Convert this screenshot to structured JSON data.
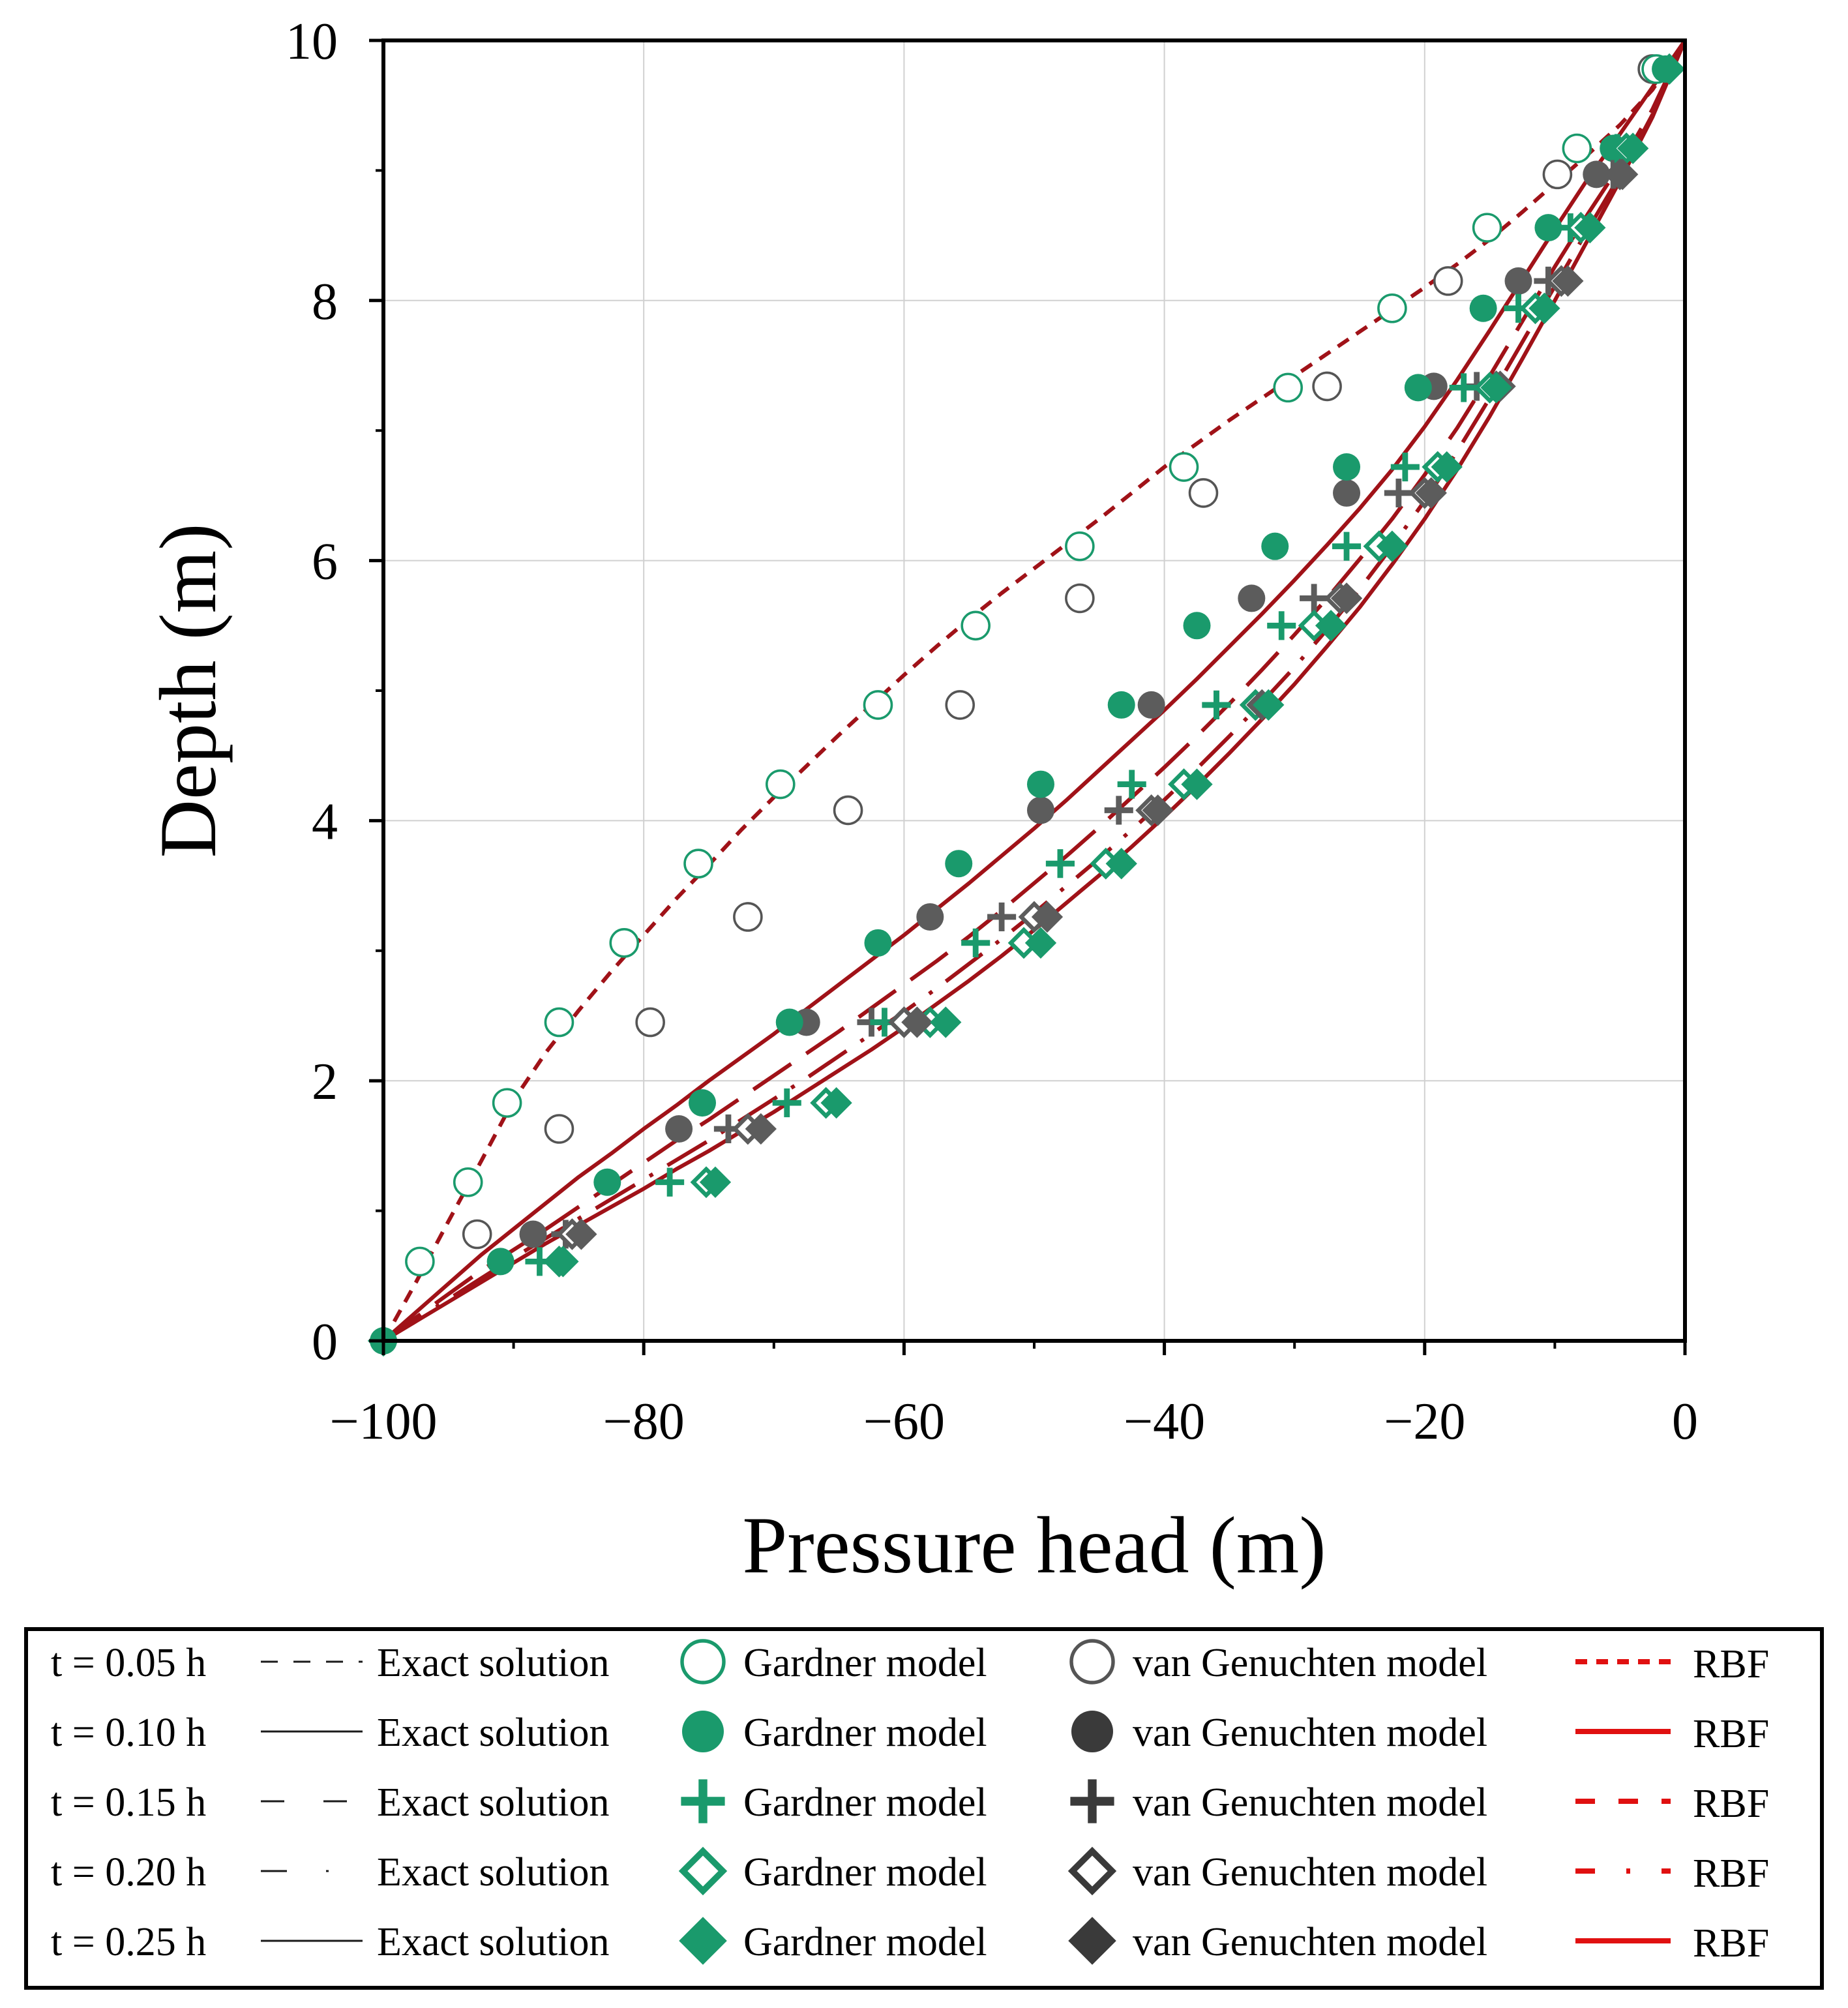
{
  "chart_data": {
    "type": "line",
    "title": "",
    "xlabel": "Pressure head (m)",
    "ylabel": "Depth (m)",
    "xlim": [
      -100,
      0
    ],
    "ylim": [
      0,
      10
    ],
    "x_ticks": [
      -100,
      -80,
      -60,
      -40,
      -20,
      0
    ],
    "x_tick_labels": [
      "−100",
      "−80",
      "−60",
      "−40",
      "−20",
      "0"
    ],
    "y_ticks": [
      0,
      2,
      4,
      6,
      8,
      10
    ],
    "y_tick_labels": [
      "0",
      "2",
      "4",
      "6",
      "8",
      "10"
    ],
    "grid": true,
    "legend_position": "bottom",
    "legend_labels": {
      "exact": "Exact solution",
      "gardner": "Gardner model",
      "vg": "van Genuchten model",
      "rbf": "RBF"
    },
    "colors": {
      "gardner": "#1a9a6c",
      "vg_open": "#555555",
      "vg_filled": "#5c5c5c",
      "exact_line": "#1a1a1a",
      "rbf_line": "#e01010",
      "chart_line": "#a01218",
      "grid": "#d0d0d0"
    },
    "series": [
      {
        "time_label": "t = 0.05 h",
        "dash": "dash",
        "curve_x": [
          -100,
          -97.5,
          -95,
          -92.5,
          -90,
          -87.5,
          -85,
          -82.5,
          -80,
          -77.5,
          -75,
          -72.5,
          -70,
          -67.5,
          -65,
          -62.5,
          -60,
          -57.5,
          -55,
          -52.5,
          -50,
          -47.5,
          -45,
          -42.5,
          -40,
          -37.5,
          -35,
          -32.5,
          -30,
          -27.5,
          -25,
          -22.5,
          -20,
          -17.5,
          -15,
          -12.5,
          -10,
          -7.5,
          -5,
          -2.5,
          0
        ],
        "curve_y": [
          0,
          0.45,
          0.92,
          1.38,
          1.85,
          2.22,
          2.54,
          2.84,
          3.12,
          3.4,
          3.66,
          3.93,
          4.18,
          4.42,
          4.66,
          4.89,
          5.12,
          5.34,
          5.55,
          5.75,
          5.94,
          6.13,
          6.32,
          6.52,
          6.72,
          6.9,
          7.08,
          7.25,
          7.42,
          7.59,
          7.76,
          7.93,
          8.1,
          8.28,
          8.47,
          8.68,
          8.9,
          9.12,
          9.35,
          9.62,
          10
        ],
        "gardner_points": [
          {
            "x": -97.2,
            "y": 0.61
          },
          {
            "x": -93.5,
            "y": 1.22
          },
          {
            "x": -90.5,
            "y": 1.83
          },
          {
            "x": -86.5,
            "y": 2.45
          },
          {
            "x": -81.5,
            "y": 3.06
          },
          {
            "x": -75.8,
            "y": 3.67
          },
          {
            "x": -69.5,
            "y": 4.28
          },
          {
            "x": -62.0,
            "y": 4.89
          },
          {
            "x": -54.5,
            "y": 5.5
          },
          {
            "x": -46.5,
            "y": 6.11
          },
          {
            "x": -38.5,
            "y": 6.72
          },
          {
            "x": -30.5,
            "y": 7.33
          },
          {
            "x": -22.5,
            "y": 7.94
          },
          {
            "x": -15.2,
            "y": 8.56
          },
          {
            "x": -8.3,
            "y": 9.17
          },
          {
            "x": -2.2,
            "y": 9.78
          }
        ],
        "vg_points": [
          {
            "x": -92.8,
            "y": 0.82
          },
          {
            "x": -86.5,
            "y": 1.63
          },
          {
            "x": -79.5,
            "y": 2.45
          },
          {
            "x": -72.0,
            "y": 3.26
          },
          {
            "x": -64.3,
            "y": 4.08
          },
          {
            "x": -55.7,
            "y": 4.89
          },
          {
            "x": -46.5,
            "y": 5.71
          },
          {
            "x": -37.0,
            "y": 6.52
          },
          {
            "x": -27.5,
            "y": 7.34
          },
          {
            "x": -18.2,
            "y": 8.15
          },
          {
            "x": -9.8,
            "y": 8.97
          },
          {
            "x": -2.5,
            "y": 9.78
          }
        ]
      },
      {
        "time_label": "t = 0.10 h",
        "dash": "solid",
        "curve_x": [
          -100,
          -97.5,
          -95,
          -92.5,
          -90,
          -87.5,
          -85,
          -82.5,
          -80,
          -77.5,
          -75,
          -72.5,
          -70,
          -67.5,
          -65,
          -62.5,
          -60,
          -57.5,
          -55,
          -52.5,
          -50,
          -47.5,
          -45,
          -42.5,
          -40,
          -37.5,
          -35,
          -32.5,
          -30,
          -27.5,
          -25,
          -22.5,
          -20,
          -17.5,
          -15,
          -12.5,
          -10,
          -7.5,
          -5,
          -2.5,
          0
        ],
        "curve_y": [
          0,
          0.22,
          0.44,
          0.66,
          0.86,
          1.06,
          1.26,
          1.44,
          1.63,
          1.81,
          2.0,
          2.18,
          2.36,
          2.55,
          2.74,
          2.93,
          3.12,
          3.32,
          3.52,
          3.73,
          3.94,
          4.16,
          4.39,
          4.62,
          4.85,
          5.09,
          5.34,
          5.59,
          5.85,
          6.12,
          6.4,
          6.7,
          7.03,
          7.39,
          7.77,
          8.16,
          8.55,
          8.93,
          9.28,
          9.64,
          10
        ],
        "gardner_points": [
          {
            "x": -100,
            "y": 0
          },
          {
            "x": -91.0,
            "y": 0.61
          },
          {
            "x": -82.8,
            "y": 1.22
          },
          {
            "x": -75.5,
            "y": 1.83
          },
          {
            "x": -68.8,
            "y": 2.45
          },
          {
            "x": -62.0,
            "y": 3.06
          },
          {
            "x": -55.8,
            "y": 3.67
          },
          {
            "x": -49.5,
            "y": 4.28
          },
          {
            "x": -43.3,
            "y": 4.89
          },
          {
            "x": -37.5,
            "y": 5.5
          },
          {
            "x": -31.5,
            "y": 6.11
          },
          {
            "x": -26.0,
            "y": 6.72
          },
          {
            "x": -20.5,
            "y": 7.33
          },
          {
            "x": -15.5,
            "y": 7.94
          },
          {
            "x": -10.5,
            "y": 8.56
          },
          {
            "x": -5.5,
            "y": 9.17
          },
          {
            "x": -1.5,
            "y": 9.78
          }
        ],
        "vg_points": [
          {
            "x": -88.5,
            "y": 0.82
          },
          {
            "x": -77.3,
            "y": 1.63
          },
          {
            "x": -67.5,
            "y": 2.45
          },
          {
            "x": -58.0,
            "y": 3.26
          },
          {
            "x": -49.5,
            "y": 4.08
          },
          {
            "x": -41.0,
            "y": 4.89
          },
          {
            "x": -33.3,
            "y": 5.71
          },
          {
            "x": -26.0,
            "y": 6.52
          },
          {
            "x": -19.3,
            "y": 7.34
          },
          {
            "x": -12.8,
            "y": 8.15
          },
          {
            "x": -6.8,
            "y": 8.97
          }
        ]
      },
      {
        "time_label": "t = 0.15 h",
        "dash": "longdash",
        "curve_x": [
          -100,
          -97.5,
          -95,
          -92.5,
          -90,
          -87.5,
          -85,
          -82.5,
          -80,
          -77.5,
          -75,
          -72.5,
          -70,
          -67.5,
          -65,
          -62.5,
          -60,
          -57.5,
          -55,
          -52.5,
          -50,
          -47.5,
          -45,
          -42.5,
          -40,
          -37.5,
          -35,
          -32.5,
          -30,
          -27.5,
          -25,
          -22.5,
          -20,
          -17.5,
          -15,
          -12.5,
          -10,
          -7.5,
          -5,
          -2.5,
          0
        ],
        "curve_y": [
          0,
          0.18,
          0.36,
          0.54,
          0.7,
          0.86,
          1.03,
          1.2,
          1.37,
          1.54,
          1.7,
          1.87,
          2.04,
          2.21,
          2.38,
          2.56,
          2.74,
          2.92,
          3.11,
          3.31,
          3.52,
          3.73,
          3.95,
          4.18,
          4.41,
          4.65,
          4.9,
          5.16,
          5.43,
          5.71,
          6.01,
          6.32,
          6.66,
          7.02,
          7.42,
          7.84,
          8.26,
          8.66,
          9.04,
          9.47,
          10
        ],
        "gardner_points": [
          {
            "x": -88.0,
            "y": 0.61
          },
          {
            "x": -78.0,
            "y": 1.22
          },
          {
            "x": -69.0,
            "y": 1.83
          },
          {
            "x": -61.5,
            "y": 2.45
          },
          {
            "x": -54.5,
            "y": 3.06
          },
          {
            "x": -48.0,
            "y": 3.67
          },
          {
            "x": -42.5,
            "y": 4.28
          },
          {
            "x": -36.0,
            "y": 4.89
          },
          {
            "x": -31.0,
            "y": 5.5
          },
          {
            "x": -26.0,
            "y": 6.11
          },
          {
            "x": -21.5,
            "y": 6.72
          },
          {
            "x": -17.0,
            "y": 7.33
          },
          {
            "x": -12.8,
            "y": 7.94
          },
          {
            "x": -8.8,
            "y": 8.56
          },
          {
            "x": -5.2,
            "y": 9.17
          }
        ],
        "vg_points": [
          {
            "x": -86.0,
            "y": 0.82
          },
          {
            "x": -73.5,
            "y": 1.63
          },
          {
            "x": -62.5,
            "y": 2.45
          },
          {
            "x": -52.5,
            "y": 3.26
          },
          {
            "x": -43.5,
            "y": 4.08
          },
          {
            "x": -36.0,
            "y": 4.89
          },
          {
            "x": -28.5,
            "y": 5.71
          },
          {
            "x": -22.0,
            "y": 6.52
          },
          {
            "x": -16.0,
            "y": 7.34
          },
          {
            "x": -10.5,
            "y": 8.15
          },
          {
            "x": -5.5,
            "y": 8.97
          }
        ]
      },
      {
        "time_label": "t = 0.20 h",
        "dash": "dashdot",
        "curve_x": [
          -100,
          -97.5,
          -95,
          -92.5,
          -90,
          -87.5,
          -85,
          -82.5,
          -80,
          -77.5,
          -75,
          -72.5,
          -70,
          -67.5,
          -65,
          -62.5,
          -60,
          -57.5,
          -55,
          -52.5,
          -50,
          -47.5,
          -45,
          -42.5,
          -40,
          -37.5,
          -35,
          -32.5,
          -30,
          -27.5,
          -25,
          -22.5,
          -20,
          -17.5,
          -15,
          -12.5,
          -10,
          -7.5,
          -5,
          -2.5,
          0
        ],
        "curve_y": [
          0,
          0.16,
          0.32,
          0.48,
          0.64,
          0.79,
          0.94,
          1.09,
          1.24,
          1.39,
          1.54,
          1.7,
          1.86,
          2.02,
          2.19,
          2.36,
          2.53,
          2.71,
          2.9,
          3.09,
          3.29,
          3.5,
          3.71,
          3.93,
          4.16,
          4.4,
          4.65,
          4.91,
          5.18,
          5.47,
          5.78,
          6.11,
          6.46,
          6.84,
          7.25,
          7.68,
          8.11,
          8.54,
          8.96,
          9.43,
          10
        ],
        "gardner_points": [
          {
            "x": -86.5,
            "y": 0.61
          },
          {
            "x": -75.2,
            "y": 1.22
          },
          {
            "x": -66.0,
            "y": 1.83
          },
          {
            "x": -58.0,
            "y": 2.45
          },
          {
            "x": -50.8,
            "y": 3.06
          },
          {
            "x": -44.5,
            "y": 3.67
          },
          {
            "x": -38.5,
            "y": 4.28
          },
          {
            "x": -33.0,
            "y": 4.89
          },
          {
            "x": -28.5,
            "y": 5.5
          },
          {
            "x": -23.5,
            "y": 6.11
          },
          {
            "x": -19.0,
            "y": 6.72
          },
          {
            "x": -15.0,
            "y": 7.33
          },
          {
            "x": -11.5,
            "y": 7.94
          },
          {
            "x": -8.0,
            "y": 8.56
          },
          {
            "x": -4.5,
            "y": 9.17
          }
        ],
        "vg_points": [
          {
            "x": -85.5,
            "y": 0.82
          },
          {
            "x": -72.0,
            "y": 1.63
          },
          {
            "x": -60.0,
            "y": 2.45
          },
          {
            "x": -50.0,
            "y": 3.26
          },
          {
            "x": -41.0,
            "y": 4.08
          },
          {
            "x": -33.0,
            "y": 4.89
          },
          {
            "x": -26.5,
            "y": 5.71
          },
          {
            "x": -20.0,
            "y": 6.52
          },
          {
            "x": -14.5,
            "y": 7.34
          },
          {
            "x": -9.5,
            "y": 8.15
          },
          {
            "x": -5.0,
            "y": 8.97
          }
        ]
      },
      {
        "time_label": "t = 0.25 h",
        "dash": "solid",
        "curve_x": [
          -100,
          -97.5,
          -95,
          -92.5,
          -90,
          -87.5,
          -85,
          -82.5,
          -80,
          -77.5,
          -75,
          -72.5,
          -70,
          -67.5,
          -65,
          -62.5,
          -60,
          -57.5,
          -55,
          -52.5,
          -50,
          -47.5,
          -45,
          -42.5,
          -40,
          -37.5,
          -35,
          -32.5,
          -30,
          -27.5,
          -25,
          -22.5,
          -20,
          -17.5,
          -15,
          -12.5,
          -10,
          -7.5,
          -5,
          -2.5,
          0
        ],
        "curve_y": [
          0,
          0.15,
          0.3,
          0.45,
          0.6,
          0.75,
          0.89,
          1.03,
          1.17,
          1.32,
          1.46,
          1.61,
          1.76,
          1.92,
          2.08,
          2.24,
          2.41,
          2.59,
          2.77,
          2.96,
          3.16,
          3.37,
          3.58,
          3.8,
          4.03,
          4.27,
          4.52,
          4.78,
          5.05,
          5.34,
          5.64,
          5.97,
          6.32,
          6.7,
          7.11,
          7.55,
          8.0,
          8.46,
          8.92,
          9.41,
          10
        ],
        "gardner_points": [
          {
            "x": -100,
            "y": 0
          },
          {
            "x": -86.2,
            "y": 0.61
          },
          {
            "x": -74.5,
            "y": 1.22
          },
          {
            "x": -65.2,
            "y": 1.83
          },
          {
            "x": -56.8,
            "y": 2.45
          },
          {
            "x": -49.5,
            "y": 3.06
          },
          {
            "x": -43.3,
            "y": 3.67
          },
          {
            "x": -37.5,
            "y": 4.28
          },
          {
            "x": -32.0,
            "y": 4.89
          },
          {
            "x": -27.2,
            "y": 5.5
          },
          {
            "x": -22.5,
            "y": 6.11
          },
          {
            "x": -18.3,
            "y": 6.72
          },
          {
            "x": -14.5,
            "y": 7.33
          },
          {
            "x": -10.8,
            "y": 7.94
          },
          {
            "x": -7.3,
            "y": 8.56
          },
          {
            "x": -4.0,
            "y": 9.17
          },
          {
            "x": -1.2,
            "y": 9.78
          }
        ],
        "vg_points": [
          {
            "x": -84.8,
            "y": 0.82
          },
          {
            "x": -71.0,
            "y": 1.63
          },
          {
            "x": -59.0,
            "y": 2.45
          },
          {
            "x": -49.0,
            "y": 3.26
          },
          {
            "x": -40.5,
            "y": 4.08
          },
          {
            "x": -32.5,
            "y": 4.89
          },
          {
            "x": -26.0,
            "y": 5.71
          },
          {
            "x": -19.5,
            "y": 6.52
          },
          {
            "x": -14.2,
            "y": 7.34
          },
          {
            "x": -9.0,
            "y": 8.15
          },
          {
            "x": -4.8,
            "y": 8.97
          }
        ]
      }
    ]
  }
}
